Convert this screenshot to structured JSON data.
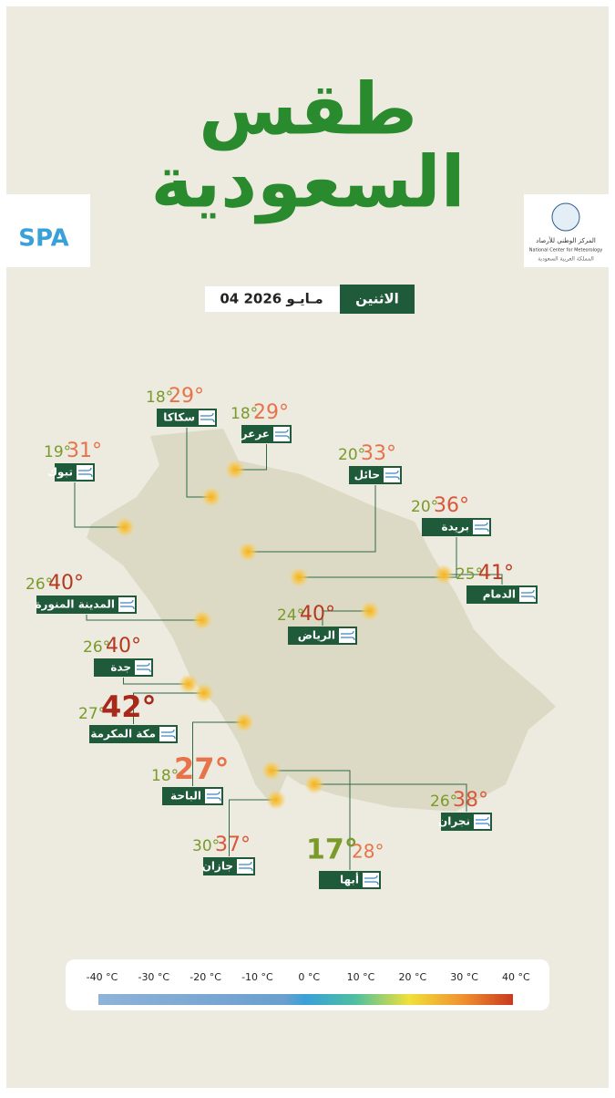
{
  "header": {
    "title_line1": "طقس",
    "title_line2": "السعودية",
    "day": "الاثنين",
    "date": "04 مـايـو 2026",
    "left_logo": "SPA",
    "right_logo_ar": "المركز الوطني للأرصاد",
    "right_logo_en": "National Center for Meteorology",
    "right_logo_sub": "المملكة العربية السعودية"
  },
  "cities": [
    {
      "name": "سكاكا",
      "low": "18°",
      "high": "29°"
    },
    {
      "name": "عرعر",
      "low": "18°",
      "high": "29°"
    },
    {
      "name": "تبوك",
      "low": "19°",
      "high": "31°"
    },
    {
      "name": "حائل",
      "low": "20°",
      "high": "33°"
    },
    {
      "name": "بريدة",
      "low": "20°",
      "high": "36°"
    },
    {
      "name": "الدمام",
      "low": "25°",
      "high": "41°"
    },
    {
      "name": "المدينة المنورة",
      "low": "26°",
      "high": "40°"
    },
    {
      "name": "الرياض",
      "low": "24°",
      "high": "40°"
    },
    {
      "name": "جدة",
      "low": "26°",
      "high": "40°"
    },
    {
      "name": "مكة المكرمة",
      "low": "27°",
      "high": "42°"
    },
    {
      "name": "الباحة",
      "low": "18°",
      "high": "27°"
    },
    {
      "name": "نجران",
      "low": "26°",
      "high": "38°"
    },
    {
      "name": "جازان",
      "low": "30°",
      "high": "37°"
    },
    {
      "name": "أبها",
      "low": "17°",
      "high": "28°"
    }
  ],
  "scale": [
    "-40 °C",
    "-30 °C",
    "-20 °C",
    "-10 °C",
    "0 °C",
    "10 °C",
    "20 °C",
    "30 °C",
    "40 °C"
  ]
}
